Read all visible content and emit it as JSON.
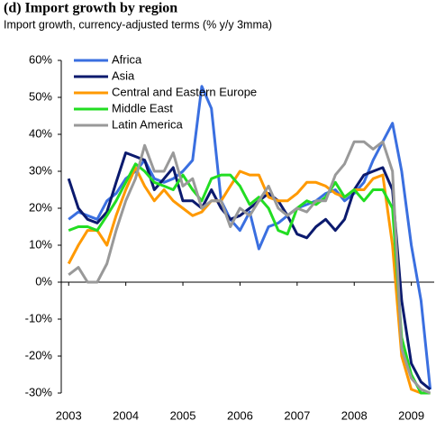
{
  "chart_data": {
    "type": "line",
    "title": "(d) Import growth by region",
    "subtitle": "Import growth, currency-adjusted terms (% y/y 3mma)",
    "x": [
      2003,
      2003.17,
      2003.33,
      2003.5,
      2003.67,
      2003.83,
      2004,
      2004.17,
      2004.33,
      2004.5,
      2004.67,
      2004.83,
      2005,
      2005.17,
      2005.33,
      2005.5,
      2005.67,
      2005.83,
      2006,
      2006.17,
      2006.33,
      2006.5,
      2006.67,
      2006.83,
      2007,
      2007.17,
      2007.33,
      2007.5,
      2007.67,
      2007.83,
      2008,
      2008.17,
      2008.33,
      2008.5,
      2008.67,
      2008.83,
      2009,
      2009.17,
      2009.33
    ],
    "series": [
      {
        "name": "Africa",
        "color": "#3a6fe0",
        "values": [
          17,
          19,
          18,
          17,
          22,
          24,
          28,
          30,
          33,
          28,
          27,
          28,
          30,
          33,
          53,
          47,
          22,
          17,
          14,
          19,
          9,
          15,
          16,
          18,
          20,
          21,
          22,
          24,
          25,
          22,
          24,
          27,
          33,
          38,
          43,
          30,
          10,
          -5,
          -29
        ]
      },
      {
        "name": "Asia",
        "color": "#0b1a6e",
        "values": [
          28,
          20,
          17,
          16,
          19,
          27,
          35,
          34,
          33,
          25,
          28,
          31,
          22,
          22,
          20,
          25,
          20,
          17,
          18,
          20,
          22,
          24,
          22,
          18,
          13,
          12,
          15,
          17,
          14,
          17,
          25,
          29,
          30,
          31,
          25,
          -5,
          -22,
          -27,
          -29
        ]
      },
      {
        "name": "Central and Eastern Europe",
        "color": "#ff9900",
        "values": [
          5,
          10,
          14,
          14,
          10,
          18,
          25,
          31,
          26,
          22,
          25,
          22,
          20,
          18,
          19,
          22,
          22,
          26,
          30,
          29,
          29,
          23,
          22,
          22,
          24,
          27,
          27,
          26,
          24,
          23,
          25,
          25,
          28,
          29,
          10,
          -20,
          -29,
          -30,
          -30
        ]
      },
      {
        "name": "Middle East",
        "color": "#22dd22",
        "values": [
          14,
          15,
          15,
          14,
          18,
          22,
          27,
          32,
          30,
          27,
          26,
          25,
          29,
          25,
          22,
          28,
          29,
          29,
          26,
          21,
          23,
          20,
          14,
          13,
          20,
          22,
          21,
          23,
          27,
          23,
          25,
          22,
          25,
          25,
          20,
          -15,
          -25,
          -30,
          -30
        ]
      },
      {
        "name": "Latin America",
        "color": "#999999",
        "values": [
          2,
          4,
          0,
          0,
          5,
          14,
          22,
          28,
          37,
          30,
          30,
          35,
          26,
          28,
          20,
          22,
          22,
          15,
          20,
          18,
          22,
          26,
          20,
          18,
          20,
          19,
          22,
          22,
          29,
          32,
          38,
          38,
          36,
          38,
          30,
          -18,
          -26,
          -29,
          -30
        ]
      }
    ],
    "xlim": [
      2002.87,
      2009.4
    ],
    "xticks": [
      2003,
      2004,
      2005,
      2006,
      2007,
      2008,
      2009
    ],
    "ylim": [
      -30,
      60
    ],
    "yticks": [
      {
        "value": -30,
        "label": "-30%"
      },
      {
        "value": -20,
        "label": "-20%"
      },
      {
        "value": -10,
        "label": "-10%"
      },
      {
        "value": 0,
        "label": "0%"
      },
      {
        "value": 10,
        "label": "10%"
      },
      {
        "value": 20,
        "label": "20%"
      },
      {
        "value": 30,
        "label": "30%"
      },
      {
        "value": 40,
        "label": "40%"
      },
      {
        "value": 50,
        "label": "50%"
      },
      {
        "value": 60,
        "label": "60%"
      }
    ],
    "grid": false,
    "legend": "upper left"
  }
}
